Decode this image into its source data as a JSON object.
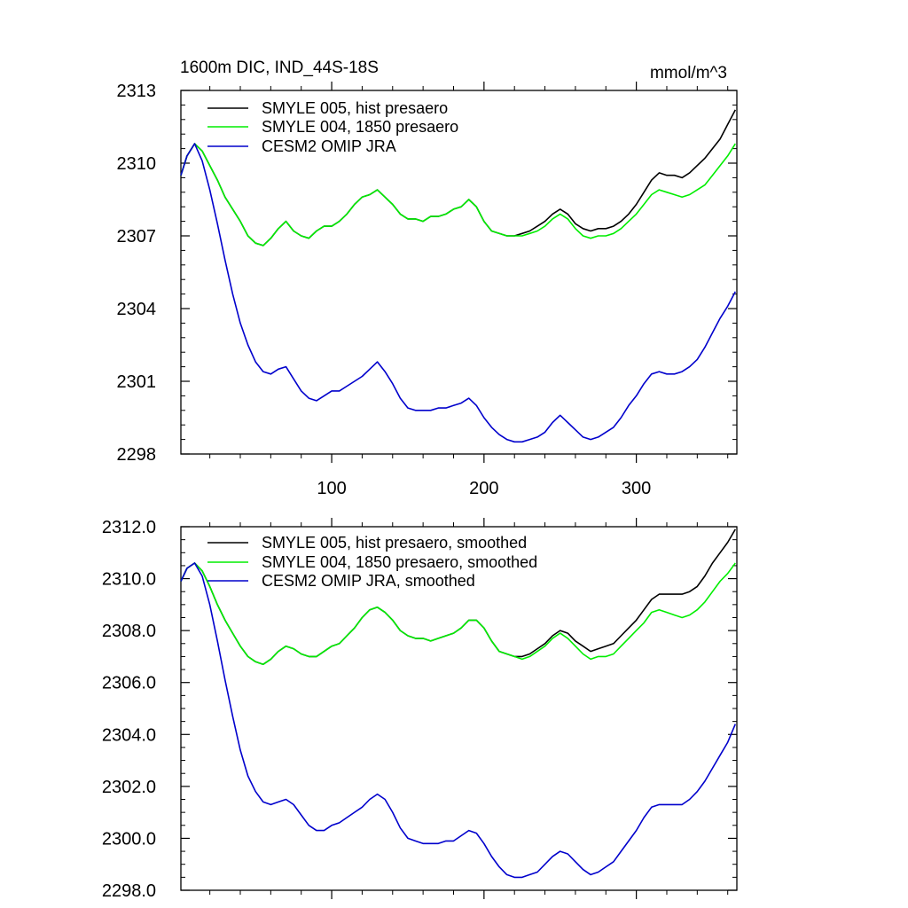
{
  "chart_data": [
    {
      "type": "line",
      "title": "1600m DIC, IND_44S-18S",
      "units": "mmol/m^3",
      "xlim": [
        1,
        366
      ],
      "ylim": [
        2298,
        2313
      ],
      "x_ticks": [
        100,
        200,
        300
      ],
      "y_ticks": [
        2298,
        2301,
        2304,
        2307,
        2310,
        2313
      ],
      "y_tick_labels": [
        "2298",
        "2301",
        "2304",
        "2307",
        "2310",
        "2313"
      ],
      "x_tick_labels": [
        "100",
        "200",
        "300"
      ],
      "legend": {
        "placement": "top-left"
      },
      "series": [
        {
          "name": "SMYLE 005, hist presaero",
          "color": "#000000",
          "x": [
            1,
            5,
            10,
            15,
            20,
            25,
            30,
            35,
            40,
            45,
            50,
            55,
            60,
            65,
            70,
            75,
            80,
            85,
            90,
            95,
            100,
            105,
            110,
            115,
            120,
            125,
            130,
            135,
            140,
            145,
            150,
            155,
            160,
            165,
            170,
            175,
            180,
            185,
            190,
            195,
            200,
            205,
            210,
            215,
            220,
            225,
            230,
            235,
            240,
            245,
            250,
            255,
            260,
            265,
            270,
            275,
            280,
            285,
            290,
            295,
            300,
            305,
            310,
            315,
            320,
            325,
            330,
            335,
            340,
            345,
            350,
            355,
            360,
            365
          ],
          "y": [
            2309.5,
            2310.3,
            2310.8,
            2310.5,
            2309.9,
            2309.3,
            2308.6,
            2308.1,
            2307.6,
            2307.0,
            2306.7,
            2306.6,
            2306.9,
            2307.3,
            2307.6,
            2307.2,
            2307.0,
            2306.9,
            2307.2,
            2307.4,
            2307.4,
            2307.6,
            2307.9,
            2308.3,
            2308.6,
            2308.7,
            2308.9,
            2308.6,
            2308.3,
            2307.9,
            2307.7,
            2307.7,
            2307.6,
            2307.8,
            2307.8,
            2307.9,
            2308.1,
            2308.2,
            2308.5,
            2308.2,
            2307.6,
            2307.2,
            2307.1,
            2307.0,
            2307.0,
            2307.1,
            2307.2,
            2307.4,
            2307.6,
            2307.9,
            2308.1,
            2307.9,
            2307.5,
            2307.3,
            2307.2,
            2307.3,
            2307.3,
            2307.4,
            2307.6,
            2307.9,
            2308.3,
            2308.8,
            2309.3,
            2309.6,
            2309.5,
            2309.5,
            2309.4,
            2309.6,
            2309.9,
            2310.2,
            2310.6,
            2311.0,
            2311.6,
            2312.2
          ]
        },
        {
          "name": "SMYLE 004, 1850 presaero",
          "color": "#00ee00",
          "x": [
            1,
            5,
            10,
            15,
            20,
            25,
            30,
            35,
            40,
            45,
            50,
            55,
            60,
            65,
            70,
            75,
            80,
            85,
            90,
            95,
            100,
            105,
            110,
            115,
            120,
            125,
            130,
            135,
            140,
            145,
            150,
            155,
            160,
            165,
            170,
            175,
            180,
            185,
            190,
            195,
            200,
            205,
            210,
            215,
            220,
            225,
            230,
            235,
            240,
            245,
            250,
            255,
            260,
            265,
            270,
            275,
            280,
            285,
            290,
            295,
            300,
            305,
            310,
            315,
            320,
            325,
            330,
            335,
            340,
            345,
            350,
            355,
            360,
            365
          ],
          "y": [
            2309.5,
            2310.3,
            2310.8,
            2310.5,
            2309.9,
            2309.3,
            2308.6,
            2308.1,
            2307.6,
            2307.0,
            2306.7,
            2306.6,
            2306.9,
            2307.3,
            2307.6,
            2307.2,
            2307.0,
            2306.9,
            2307.2,
            2307.4,
            2307.4,
            2307.6,
            2307.9,
            2308.3,
            2308.6,
            2308.7,
            2308.9,
            2308.6,
            2308.3,
            2307.9,
            2307.7,
            2307.7,
            2307.6,
            2307.8,
            2307.8,
            2307.9,
            2308.1,
            2308.2,
            2308.5,
            2308.2,
            2307.6,
            2307.2,
            2307.1,
            2307.0,
            2307.0,
            2307.0,
            2307.1,
            2307.2,
            2307.4,
            2307.7,
            2307.9,
            2307.7,
            2307.3,
            2307.0,
            2306.9,
            2307.0,
            2307.0,
            2307.1,
            2307.3,
            2307.6,
            2307.9,
            2308.3,
            2308.7,
            2308.9,
            2308.8,
            2308.7,
            2308.6,
            2308.7,
            2308.9,
            2309.1,
            2309.5,
            2309.9,
            2310.3,
            2310.8
          ]
        },
        {
          "name": "CESM2 OMIP JRA",
          "color": "#0000cc",
          "x": [
            1,
            5,
            10,
            15,
            20,
            25,
            30,
            35,
            40,
            45,
            50,
            55,
            60,
            65,
            70,
            75,
            80,
            85,
            90,
            95,
            100,
            105,
            110,
            115,
            120,
            125,
            130,
            135,
            140,
            145,
            150,
            155,
            160,
            165,
            170,
            175,
            180,
            185,
            190,
            195,
            200,
            205,
            210,
            215,
            220,
            225,
            230,
            235,
            240,
            245,
            250,
            255,
            260,
            265,
            270,
            275,
            280,
            285,
            290,
            295,
            300,
            305,
            310,
            315,
            320,
            325,
            330,
            335,
            340,
            345,
            350,
            355,
            360,
            365
          ],
          "y": [
            2309.5,
            2310.3,
            2310.8,
            2310.1,
            2308.9,
            2307.5,
            2306.0,
            2304.6,
            2303.4,
            2302.5,
            2301.8,
            2301.4,
            2301.3,
            2301.5,
            2301.6,
            2301.1,
            2300.6,
            2300.3,
            2300.2,
            2300.4,
            2300.6,
            2300.6,
            2300.8,
            2301.0,
            2301.2,
            2301.5,
            2301.8,
            2301.4,
            2300.9,
            2300.3,
            2299.9,
            2299.8,
            2299.8,
            2299.8,
            2299.9,
            2299.9,
            2300.0,
            2300.1,
            2300.3,
            2300.0,
            2299.5,
            2299.1,
            2298.8,
            2298.6,
            2298.5,
            2298.5,
            2298.6,
            2298.7,
            2298.9,
            2299.3,
            2299.6,
            2299.3,
            2299.0,
            2298.7,
            2298.6,
            2298.7,
            2298.9,
            2299.1,
            2299.5,
            2300.0,
            2300.4,
            2300.9,
            2301.3,
            2301.4,
            2301.3,
            2301.3,
            2301.4,
            2301.6,
            2301.9,
            2302.4,
            2303.0,
            2303.6,
            2304.1,
            2304.7
          ]
        }
      ]
    },
    {
      "type": "line",
      "title": "",
      "xlim": [
        1,
        366
      ],
      "ylim": [
        2298,
        2312
      ],
      "x_ticks": [
        100,
        200,
        300
      ],
      "y_ticks": [
        2298,
        2300,
        2302,
        2304,
        2306,
        2308,
        2310,
        2312
      ],
      "y_tick_labels": [
        "2298.0",
        "2300.0",
        "2302.0",
        "2304.0",
        "2306.0",
        "2308.0",
        "2310.0",
        "2312.0"
      ],
      "legend": {
        "placement": "top-left"
      },
      "series": [
        {
          "name": "SMYLE 005, hist presaero, smoothed",
          "color": "#000000",
          "x": [
            1,
            5,
            10,
            15,
            20,
            25,
            30,
            35,
            40,
            45,
            50,
            55,
            60,
            65,
            70,
            75,
            80,
            85,
            90,
            95,
            100,
            105,
            110,
            115,
            120,
            125,
            130,
            135,
            140,
            145,
            150,
            155,
            160,
            165,
            170,
            175,
            180,
            185,
            190,
            195,
            200,
            205,
            210,
            215,
            220,
            225,
            230,
            235,
            240,
            245,
            250,
            255,
            260,
            265,
            270,
            275,
            280,
            285,
            290,
            295,
            300,
            305,
            310,
            315,
            320,
            325,
            330,
            335,
            340,
            345,
            350,
            355,
            360,
            365
          ],
          "y": [
            2309.9,
            2310.4,
            2310.6,
            2310.3,
            2309.7,
            2309.0,
            2308.4,
            2307.9,
            2307.4,
            2307.0,
            2306.8,
            2306.7,
            2306.9,
            2307.2,
            2307.4,
            2307.3,
            2307.1,
            2307.0,
            2307.0,
            2307.2,
            2307.4,
            2307.5,
            2307.8,
            2308.1,
            2308.5,
            2308.8,
            2308.9,
            2308.7,
            2308.4,
            2308.0,
            2307.8,
            2307.7,
            2307.7,
            2307.6,
            2307.7,
            2307.8,
            2307.9,
            2308.1,
            2308.4,
            2308.4,
            2308.1,
            2307.6,
            2307.2,
            2307.1,
            2307.0,
            2307.0,
            2307.1,
            2307.3,
            2307.5,
            2307.8,
            2308.0,
            2307.9,
            2307.6,
            2307.4,
            2307.2,
            2307.3,
            2307.4,
            2307.5,
            2307.8,
            2308.1,
            2308.4,
            2308.8,
            2309.2,
            2309.4,
            2309.4,
            2309.4,
            2309.4,
            2309.5,
            2309.7,
            2310.1,
            2310.6,
            2311.0,
            2311.4,
            2311.9
          ]
        },
        {
          "name": "SMYLE 004, 1850 presaero, smoothed",
          "color": "#00ee00",
          "x": [
            1,
            5,
            10,
            15,
            20,
            25,
            30,
            35,
            40,
            45,
            50,
            55,
            60,
            65,
            70,
            75,
            80,
            85,
            90,
            95,
            100,
            105,
            110,
            115,
            120,
            125,
            130,
            135,
            140,
            145,
            150,
            155,
            160,
            165,
            170,
            175,
            180,
            185,
            190,
            195,
            200,
            205,
            210,
            215,
            220,
            225,
            230,
            235,
            240,
            245,
            250,
            255,
            260,
            265,
            270,
            275,
            280,
            285,
            290,
            295,
            300,
            305,
            310,
            315,
            320,
            325,
            330,
            335,
            340,
            345,
            350,
            355,
            360,
            365
          ],
          "y": [
            2309.9,
            2310.4,
            2310.6,
            2310.3,
            2309.7,
            2309.0,
            2308.4,
            2307.9,
            2307.4,
            2307.0,
            2306.8,
            2306.7,
            2306.9,
            2307.2,
            2307.4,
            2307.3,
            2307.1,
            2307.0,
            2307.0,
            2307.2,
            2307.4,
            2307.5,
            2307.8,
            2308.1,
            2308.5,
            2308.8,
            2308.9,
            2308.7,
            2308.4,
            2308.0,
            2307.8,
            2307.7,
            2307.7,
            2307.6,
            2307.7,
            2307.8,
            2307.9,
            2308.1,
            2308.4,
            2308.4,
            2308.1,
            2307.6,
            2307.2,
            2307.1,
            2307.0,
            2306.9,
            2307.0,
            2307.2,
            2307.4,
            2307.7,
            2307.9,
            2307.7,
            2307.4,
            2307.1,
            2306.9,
            2307.0,
            2307.0,
            2307.1,
            2307.4,
            2307.7,
            2308.0,
            2308.3,
            2308.7,
            2308.8,
            2308.7,
            2308.6,
            2308.5,
            2308.6,
            2308.8,
            2309.1,
            2309.5,
            2309.9,
            2310.2,
            2310.6
          ]
        },
        {
          "name": "CESM2 OMIP JRA, smoothed",
          "color": "#0000cc",
          "x": [
            1,
            5,
            10,
            15,
            20,
            25,
            30,
            35,
            40,
            45,
            50,
            55,
            60,
            65,
            70,
            75,
            80,
            85,
            90,
            95,
            100,
            105,
            110,
            115,
            120,
            125,
            130,
            135,
            140,
            145,
            150,
            155,
            160,
            165,
            170,
            175,
            180,
            185,
            190,
            195,
            200,
            205,
            210,
            215,
            220,
            225,
            230,
            235,
            240,
            245,
            250,
            255,
            260,
            265,
            270,
            275,
            280,
            285,
            290,
            295,
            300,
            305,
            310,
            315,
            320,
            325,
            330,
            335,
            340,
            345,
            350,
            355,
            360,
            365
          ],
          "y": [
            2309.9,
            2310.4,
            2310.6,
            2310.1,
            2309.0,
            2307.6,
            2306.1,
            2304.7,
            2303.4,
            2302.4,
            2301.8,
            2301.4,
            2301.3,
            2301.4,
            2301.5,
            2301.3,
            2300.9,
            2300.5,
            2300.3,
            2300.3,
            2300.5,
            2300.6,
            2300.8,
            2301.0,
            2301.2,
            2301.5,
            2301.7,
            2301.5,
            2301.0,
            2300.4,
            2300.0,
            2299.9,
            2299.8,
            2299.8,
            2299.8,
            2299.9,
            2299.9,
            2300.1,
            2300.3,
            2300.2,
            2299.8,
            2299.3,
            2298.9,
            2298.6,
            2298.5,
            2298.5,
            2298.6,
            2298.7,
            2299.0,
            2299.3,
            2299.5,
            2299.4,
            2299.1,
            2298.8,
            2298.6,
            2298.7,
            2298.9,
            2299.1,
            2299.5,
            2299.9,
            2300.3,
            2300.8,
            2301.2,
            2301.3,
            2301.3,
            2301.3,
            2301.3,
            2301.5,
            2301.8,
            2302.2,
            2302.7,
            2303.2,
            2303.7,
            2304.4
          ]
        }
      ]
    }
  ]
}
